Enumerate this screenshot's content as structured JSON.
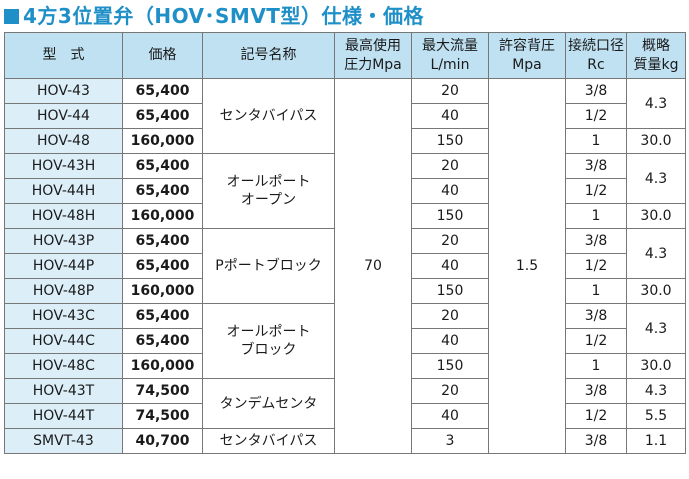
{
  "title": "4方3位置弁（HOV･SMVT型）仕様・価格",
  "headers": {
    "model": "型　式",
    "price": "価格",
    "symbol": "記号名称",
    "pressure": [
      "最高使用",
      "圧力Mpa"
    ],
    "flow": [
      "最大流量",
      "L/min"
    ],
    "back": [
      "許容背圧",
      "Mpa"
    ],
    "port": [
      "接続口径",
      "Rc"
    ],
    "weight": [
      "概略",
      "質量kg"
    ]
  },
  "symbols": {
    "center_bypass": "センタバイパス",
    "all_port_open": [
      "オールポート",
      "オープン"
    ],
    "p_port_block": "Pポートブロック",
    "all_port_block": [
      "オールポート",
      "ブロック"
    ],
    "tandem_center": "タンデムセンタ",
    "center_bypass_2": "センタバイパス"
  },
  "max_pressure": "70",
  "back_pressure": "1.5",
  "rows": [
    {
      "model": "HOV-43",
      "price": "65,400",
      "flow": "20",
      "port": "3/8"
    },
    {
      "model": "HOV-44",
      "price": "65,400",
      "flow": "40",
      "port": "1/2"
    },
    {
      "model": "HOV-48",
      "price": "160,000",
      "flow": "150",
      "port": "1"
    },
    {
      "model": "HOV-43H",
      "price": "65,400",
      "flow": "20",
      "port": "3/8"
    },
    {
      "model": "HOV-44H",
      "price": "65,400",
      "flow": "40",
      "port": "1/2"
    },
    {
      "model": "HOV-48H",
      "price": "160,000",
      "flow": "150",
      "port": "1"
    },
    {
      "model": "HOV-43P",
      "price": "65,400",
      "flow": "20",
      "port": "3/8"
    },
    {
      "model": "HOV-44P",
      "price": "65,400",
      "flow": "40",
      "port": "1/2"
    },
    {
      "model": "HOV-48P",
      "price": "160,000",
      "flow": "150",
      "port": "1"
    },
    {
      "model": "HOV-43C",
      "price": "65,400",
      "flow": "20",
      "port": "3/8"
    },
    {
      "model": "HOV-44C",
      "price": "65,400",
      "flow": "40",
      "port": "1/2"
    },
    {
      "model": "HOV-48C",
      "price": "160,000",
      "flow": "150",
      "port": "1"
    },
    {
      "model": "HOV-43T",
      "price": "74,500",
      "flow": "20",
      "port": "3/8"
    },
    {
      "model": "HOV-44T",
      "price": "74,500",
      "flow": "40",
      "port": "1/2"
    },
    {
      "model": "SMVT-43",
      "price": "40,700",
      "flow": "3",
      "port": "3/8"
    }
  ],
  "weights": {
    "g1": "4.3",
    "g1b": "30.0",
    "g2": "4.3",
    "g2b": "30.0",
    "g3": "4.3",
    "g3b": "30.0",
    "g4": "4.3",
    "g4b": "30.0",
    "t1": "4.3",
    "t2": "5.5",
    "s1": "1.1"
  }
}
